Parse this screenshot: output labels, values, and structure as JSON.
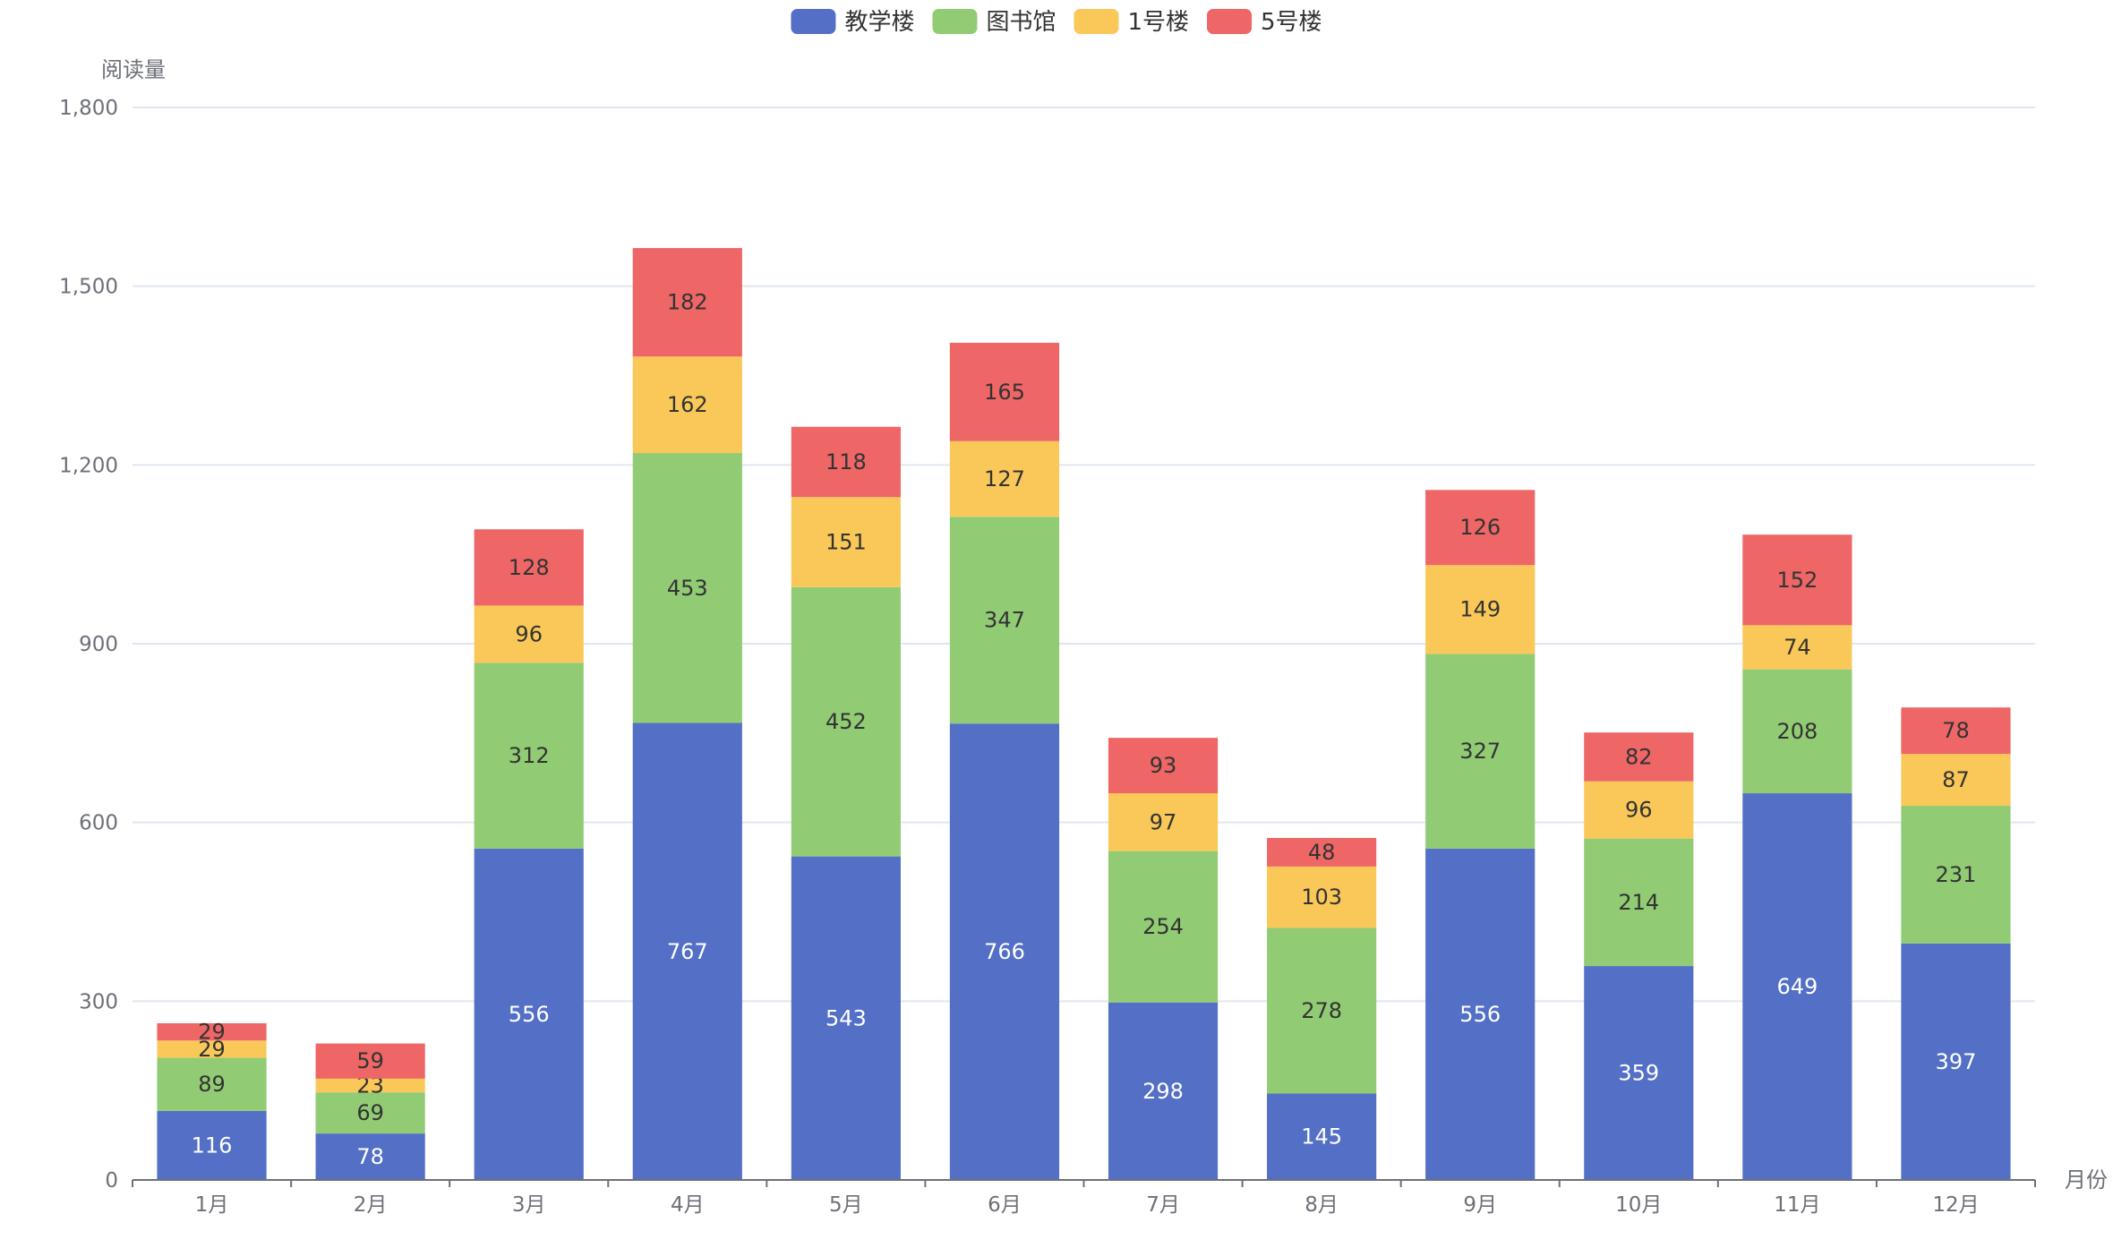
{
  "chart_data": {
    "type": "bar",
    "stacked": true,
    "ylabel": "阅读量",
    "xlabel": "月份",
    "ylim": [
      0,
      1800
    ],
    "yticks": [
      0,
      300,
      600,
      900,
      1200,
      1500,
      1800
    ],
    "ytick_labels": [
      "0",
      "300",
      "600",
      "900",
      "1,200",
      "1,500",
      "1,800"
    ],
    "categories": [
      "1月",
      "2月",
      "3月",
      "4月",
      "5月",
      "6月",
      "7月",
      "8月",
      "9月",
      "10月",
      "11月",
      "12月"
    ],
    "legend_position": "top-center",
    "grid": true,
    "series": [
      {
        "name": "教学楼",
        "color": "#5470c6",
        "label_color": "#ffffff",
        "values": [
          116,
          78,
          556,
          767,
          543,
          766,
          298,
          145,
          556,
          359,
          649,
          397
        ]
      },
      {
        "name": "图书馆",
        "color": "#91cc75",
        "label_color": "#333333",
        "values": [
          89,
          69,
          312,
          453,
          452,
          347,
          254,
          278,
          327,
          214,
          208,
          231
        ]
      },
      {
        "name": "1号楼",
        "color": "#fac858",
        "label_color": "#333333",
        "values": [
          29,
          23,
          96,
          162,
          151,
          127,
          97,
          103,
          149,
          96,
          74,
          87
        ]
      },
      {
        "name": "5号楼",
        "color": "#ee6666",
        "label_color": "#333333",
        "values": [
          29,
          59,
          128,
          182,
          118,
          165,
          93,
          48,
          126,
          82,
          152,
          78
        ]
      }
    ]
  }
}
